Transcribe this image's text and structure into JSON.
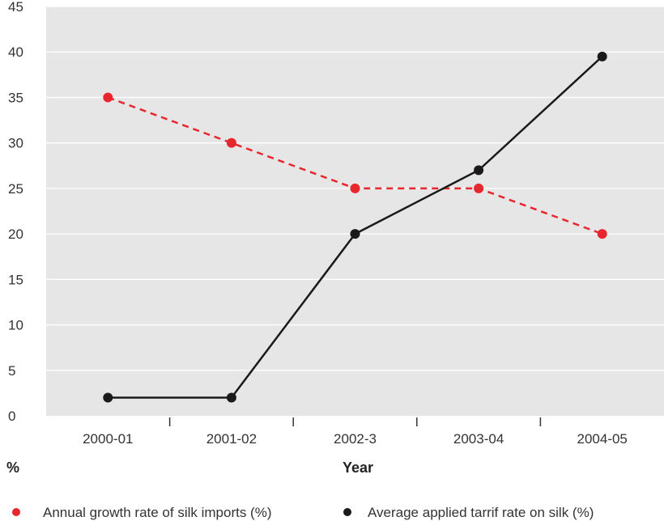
{
  "chart_data": {
    "type": "line",
    "categories": [
      "2000-01",
      "2001-02",
      "2002-3",
      "2003-04",
      "2004-05"
    ],
    "ylabel": "%",
    "xlabel": "Year",
    "ylim": [
      0,
      45
    ],
    "yticks": [
      0,
      5,
      10,
      15,
      20,
      25,
      30,
      35,
      40,
      45
    ],
    "grid": true,
    "legend_position": "bottom",
    "series": [
      {
        "name": "Annual growth rate of silk imports (%)",
        "values": [
          35,
          30,
          25,
          25,
          20
        ],
        "color": "#e8262d",
        "style": "dashed"
      },
      {
        "name": "Average applied tarrif rate on silk (%)",
        "values": [
          2,
          2,
          20,
          27,
          39.5
        ],
        "color": "#1a1a1a",
        "style": "solid"
      }
    ],
    "colors": {
      "plot_background": "#e6e6e6",
      "gridline": "#ffffff"
    }
  }
}
